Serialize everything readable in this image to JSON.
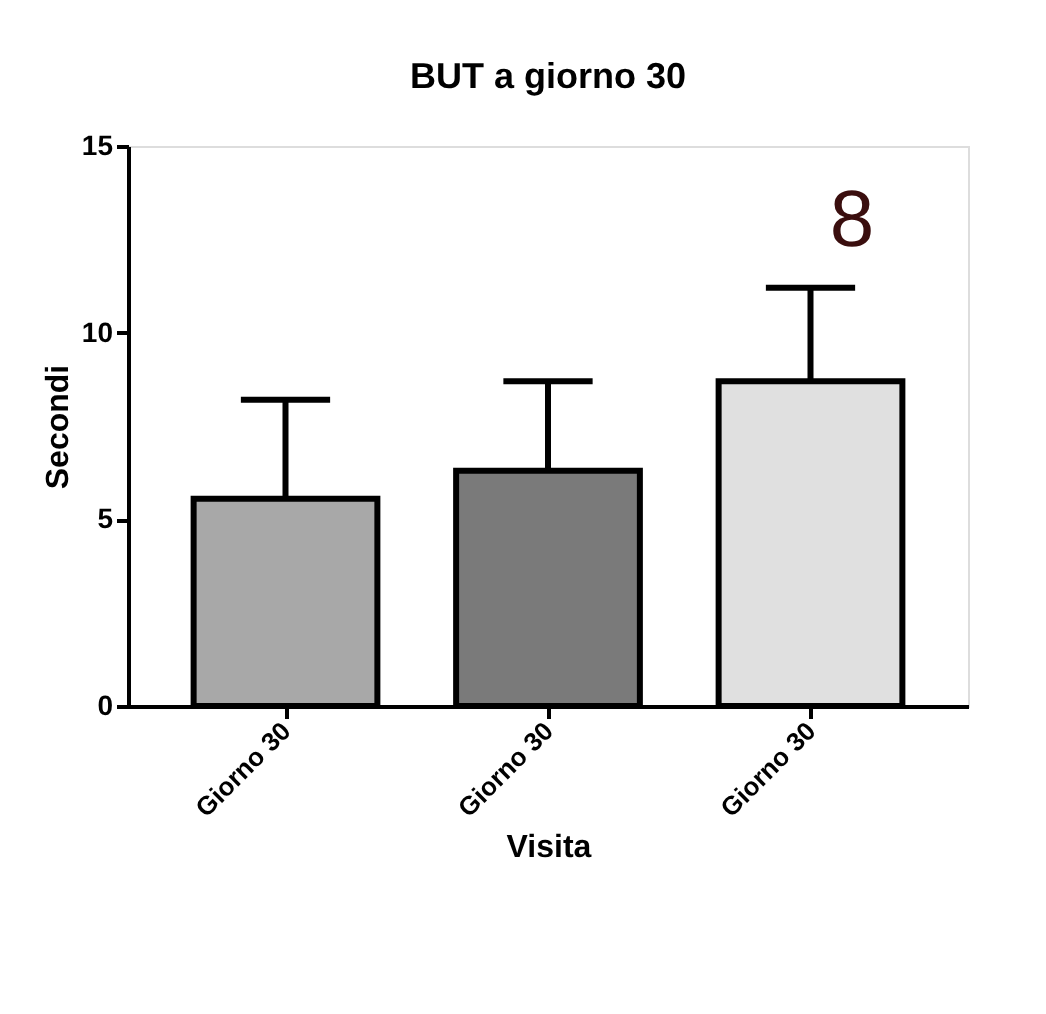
{
  "chart_data": {
    "type": "bar",
    "title": "BUT a giorno 30",
    "xlabel": "Visita",
    "ylabel": "Secondi",
    "categories": [
      "Giorno 30",
      "Giorno 30",
      "Giorno 30"
    ],
    "values": [
      5.55,
      6.3,
      8.7
    ],
    "errors": [
      [
        5.55,
        8.2
      ],
      [
        6.3,
        8.7
      ],
      [
        8.7,
        11.2
      ]
    ],
    "colors": [
      "#a8a8a8",
      "#7a7a7a",
      "#e0e0e0"
    ],
    "ylim": [
      0,
      15
    ],
    "yticks": [
      0,
      5,
      10,
      15
    ],
    "grid": false,
    "annotations": [
      "8"
    ]
  }
}
